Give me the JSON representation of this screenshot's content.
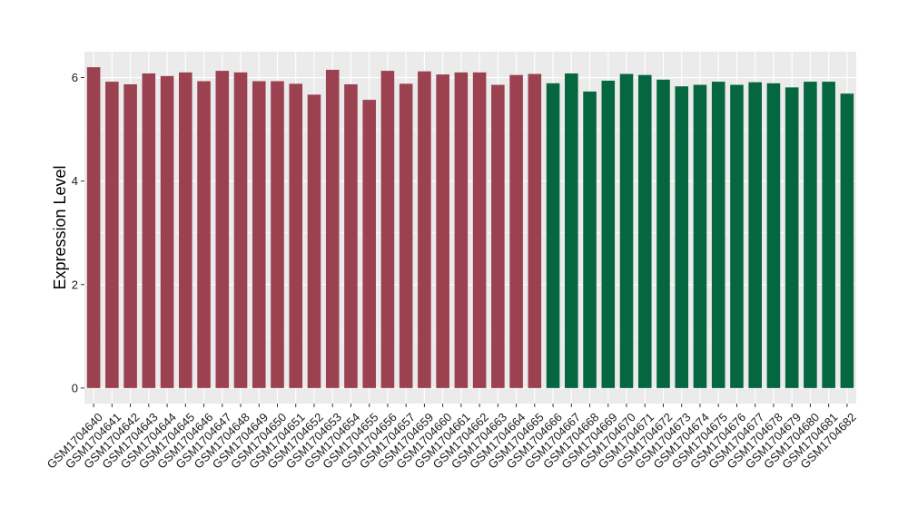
{
  "chart_data": {
    "type": "bar",
    "title": "",
    "xlabel": "",
    "ylabel": "Expression Level",
    "ylim": [
      -0.3,
      6.5
    ],
    "yticks": [
      0,
      2,
      4,
      6
    ],
    "grid": true,
    "legend": "none",
    "panel_background": "#ebebeb",
    "grid_color": "#ffffff",
    "categories": [
      "GSM1704640",
      "GSM1704641",
      "GSM1704642",
      "GSM1704643",
      "GSM1704644",
      "GSM1704645",
      "GSM1704646",
      "GSM1704647",
      "GSM1704648",
      "GSM1704649",
      "GSM1704650",
      "GSM1704651",
      "GSM1704652",
      "GSM1704653",
      "GSM1704654",
      "GSM1704655",
      "GSM1704656",
      "GSM1704657",
      "GSM1704659",
      "GSM1704660",
      "GSM1704661",
      "GSM1704662",
      "GSM1704663",
      "GSM1704664",
      "GSM1704665",
      "GSM1704666",
      "GSM1704667",
      "GSM1704668",
      "GSM1704669",
      "GSM1704670",
      "GSM1704671",
      "GSM1704672",
      "GSM1704673",
      "GSM1704674",
      "GSM1704675",
      "GSM1704676",
      "GSM1704677",
      "GSM1704678",
      "GSM1704679",
      "GSM1704680",
      "GSM1704681",
      "GSM1704682"
    ],
    "values": [
      6.2,
      5.92,
      5.87,
      6.08,
      6.03,
      6.1,
      5.93,
      6.13,
      6.1,
      5.93,
      5.93,
      5.88,
      5.67,
      6.15,
      5.87,
      5.57,
      6.13,
      5.88,
      6.12,
      6.06,
      6.1,
      6.1,
      5.86,
      6.05,
      6.07,
      5.89,
      6.08,
      5.73,
      5.94,
      6.07,
      6.05,
      5.96,
      5.83,
      5.86,
      5.92,
      5.86,
      5.91,
      5.89,
      5.81,
      5.92,
      5.92,
      5.69
    ],
    "bar_colors": [
      "#9b4150",
      "#9b4150",
      "#9b4150",
      "#9b4150",
      "#9b4150",
      "#9b4150",
      "#9b4150",
      "#9b4150",
      "#9b4150",
      "#9b4150",
      "#9b4150",
      "#9b4150",
      "#9b4150",
      "#9b4150",
      "#9b4150",
      "#9b4150",
      "#9b4150",
      "#9b4150",
      "#9b4150",
      "#9b4150",
      "#9b4150",
      "#9b4150",
      "#9b4150",
      "#9b4150",
      "#9b4150",
      "#05673f",
      "#05673f",
      "#05673f",
      "#05673f",
      "#05673f",
      "#05673f",
      "#05673f",
      "#05673f",
      "#05673f",
      "#05673f",
      "#05673f",
      "#05673f",
      "#05673f",
      "#05673f",
      "#05673f",
      "#05673f",
      "#05673f"
    ]
  }
}
